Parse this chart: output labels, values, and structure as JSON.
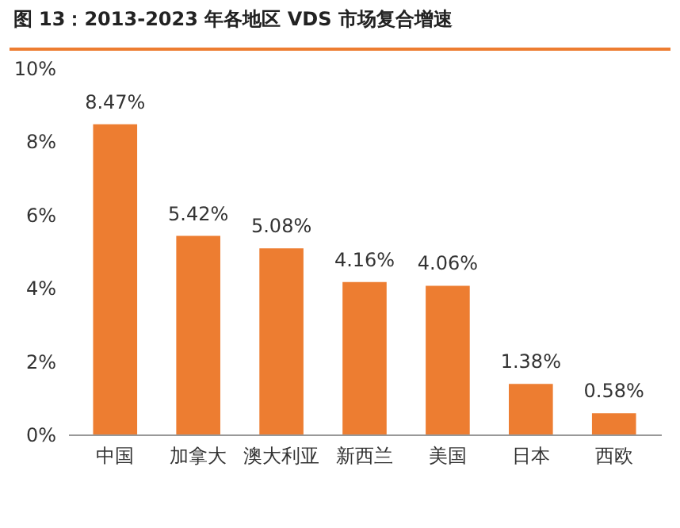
{
  "chart_data": {
    "type": "bar",
    "title": "图 13：2013-2023 年各地区 VDS 市场复合增速",
    "categories": [
      "中国",
      "加拿大",
      "澳大利亚",
      "新西兰",
      "美国",
      "日本",
      "西欧"
    ],
    "values": [
      8.47,
      5.42,
      5.08,
      4.16,
      4.06,
      1.38,
      0.58
    ],
    "value_labels": [
      "8.47%",
      "5.42%",
      "5.08%",
      "4.16%",
      "4.06%",
      "1.38%",
      "0.58%"
    ],
    "color": "#ed7d31",
    "ylim": [
      0,
      10
    ],
    "yticks": [
      {
        "value": 0,
        "label": "0%"
      },
      {
        "value": 2,
        "label": "2%"
      },
      {
        "value": 4,
        "label": "4%"
      },
      {
        "value": 6,
        "label": "6%"
      },
      {
        "value": 8,
        "label": "8%"
      },
      {
        "value": 10,
        "label": "10%"
      }
    ],
    "grid": false
  }
}
